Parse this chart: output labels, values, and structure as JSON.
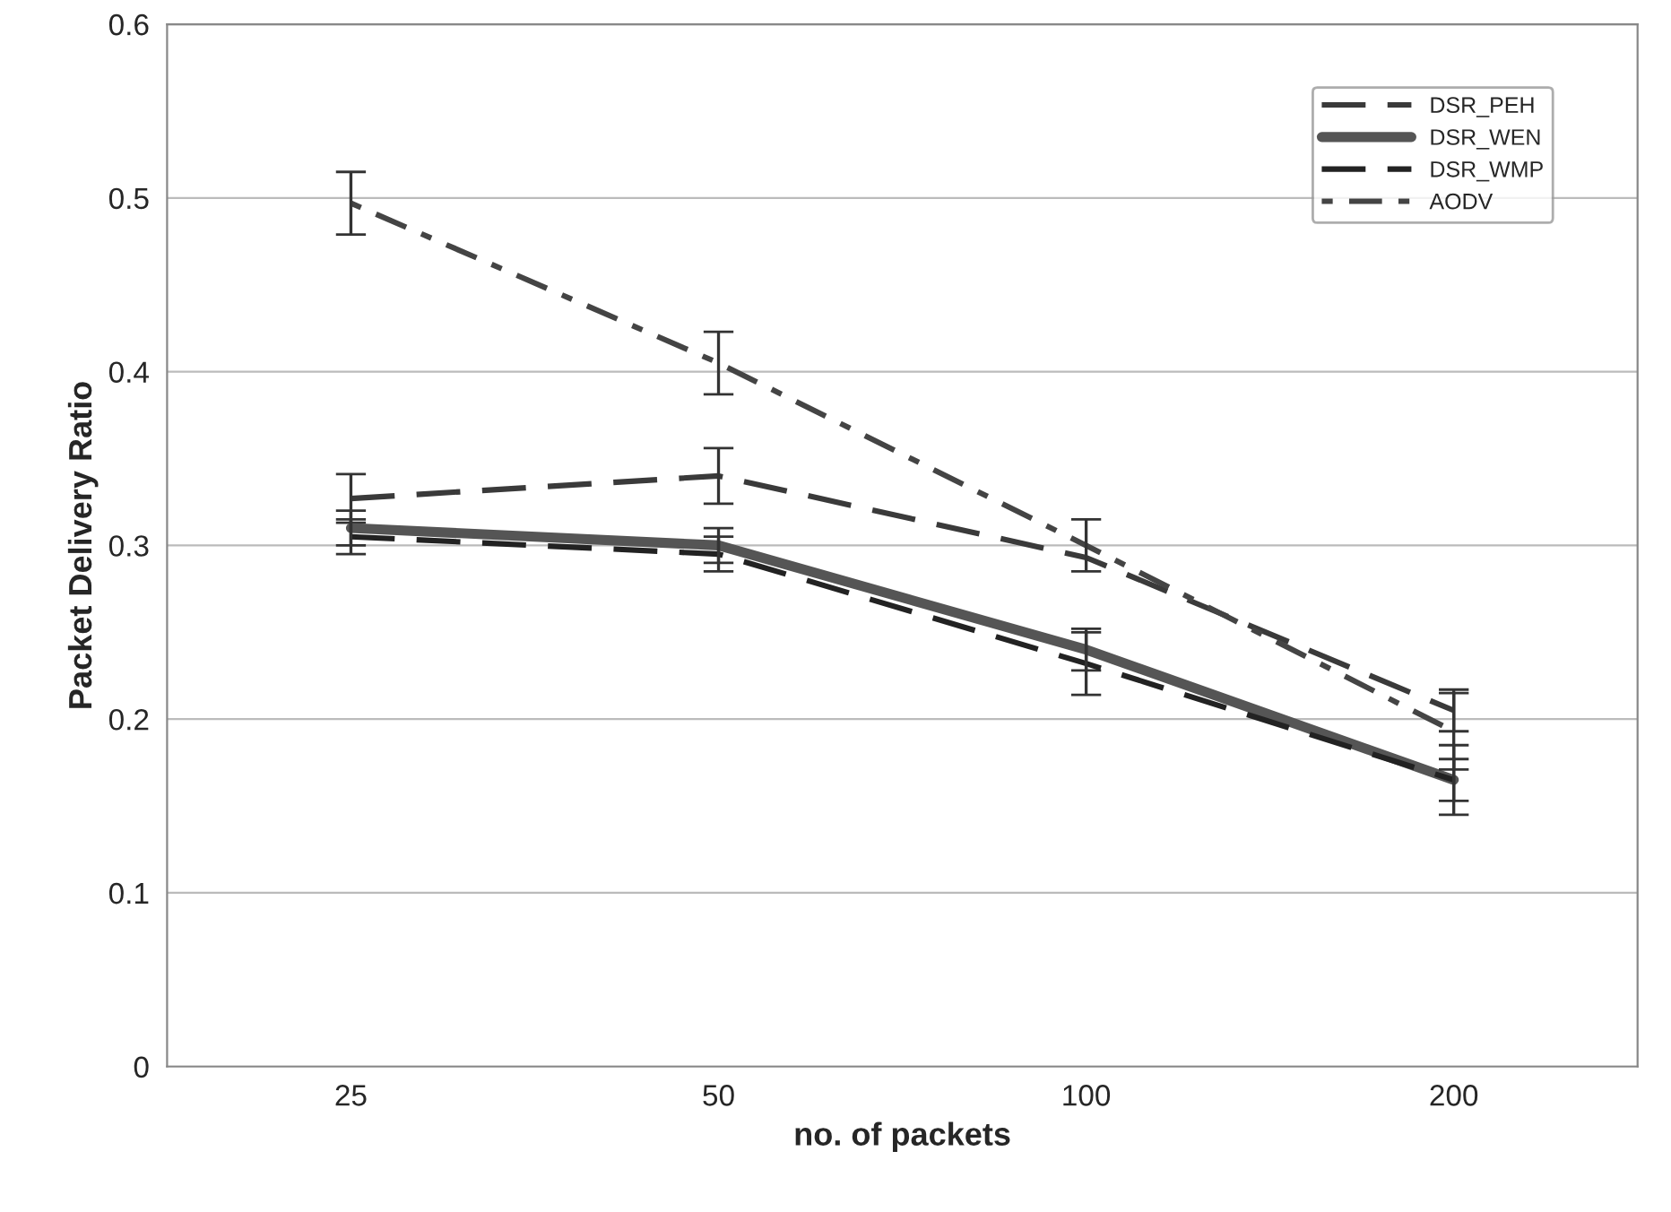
{
  "chart_data": {
    "type": "line",
    "xlabel": "no. of packets",
    "ylabel": "Packet Delivery Ratio",
    "categories": [
      "25",
      "50",
      "100",
      "200"
    ],
    "series": [
      {
        "name": "DSR_PEH",
        "color": "#3a3a3a",
        "line_style": "dashed",
        "values": [
          0.327,
          0.34,
          0.293,
          0.205
        ],
        "errors": [
          0.014,
          0.016,
          null,
          0.012
        ]
      },
      {
        "name": "DSR_WEN",
        "color": "#555555",
        "line_style": "solid",
        "values": [
          0.31,
          0.3,
          0.24,
          0.165
        ],
        "errors": [
          0.01,
          0.01,
          0.012,
          0.012
        ]
      },
      {
        "name": "DSR_WMP",
        "color": "#222222",
        "line_style": "dashed",
        "values": [
          0.305,
          0.295,
          0.232,
          0.165
        ],
        "errors": [
          0.01,
          0.01,
          0.018,
          0.02
        ]
      },
      {
        "name": "AODV",
        "color": "#444444",
        "line_style": "dotted",
        "values": [
          0.497,
          0.405,
          0.3,
          0.193
        ],
        "errors": [
          0.018,
          0.018,
          0.015,
          0.022
        ]
      }
    ],
    "ylim": [
      0,
      0.6
    ],
    "yticks": [
      {
        "value": 0,
        "label": "0"
      },
      0.1,
      0.2,
      0.3,
      0.4,
      0.5,
      0.6
    ],
    "grid": "y",
    "legend": "top right",
    "marker": "none"
  }
}
